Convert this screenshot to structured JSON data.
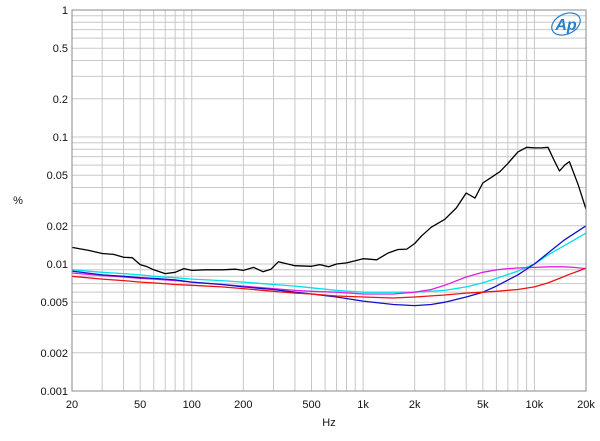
{
  "logo": {
    "text": "Ap",
    "color": "#2a7fc9"
  },
  "chart_data": {
    "type": "line",
    "xlabel": "Hz",
    "ylabel": "%",
    "xscale": "log",
    "yscale": "log",
    "xlim": [
      20,
      20000
    ],
    "ylim": [
      0.001,
      1
    ],
    "grid": true,
    "x_ticks": [
      {
        "v": 20,
        "label": "20"
      },
      {
        "v": 50,
        "label": "50"
      },
      {
        "v": 100,
        "label": "100"
      },
      {
        "v": 200,
        "label": "200"
      },
      {
        "v": 500,
        "label": "500"
      },
      {
        "v": 1000,
        "label": "1k"
      },
      {
        "v": 2000,
        "label": "2k"
      },
      {
        "v": 5000,
        "label": "5k"
      },
      {
        "v": 10000,
        "label": "10k"
      },
      {
        "v": 20000,
        "label": "20k"
      }
    ],
    "y_ticks": [
      {
        "v": 1,
        "label": "1"
      },
      {
        "v": 0.5,
        "label": "0.5"
      },
      {
        "v": 0.2,
        "label": "0.2"
      },
      {
        "v": 0.1,
        "label": "0.1"
      },
      {
        "v": 0.05,
        "label": "0.05"
      },
      {
        "v": 0.02,
        "label": "0.02"
      },
      {
        "v": 0.01,
        "label": "0.01"
      },
      {
        "v": 0.005,
        "label": "0.005"
      },
      {
        "v": 0.002,
        "label": "0.002"
      },
      {
        "v": 0.001,
        "label": "0.001"
      }
    ],
    "series": [
      {
        "color": "#000000",
        "x": [
          20,
          25,
          30,
          35,
          40,
          45,
          50,
          55,
          60,
          70,
          80,
          90,
          100,
          120,
          150,
          180,
          200,
          230,
          260,
          290,
          320,
          400,
          500,
          560,
          630,
          700,
          800,
          900,
          1000,
          1200,
          1400,
          1600,
          1800,
          2000,
          2200,
          2500,
          3000,
          3500,
          4000,
          4500,
          5000,
          5600,
          6300,
          7000,
          8000,
          9000,
          10000,
          11000,
          12000,
          13000,
          14000,
          15000,
          16000,
          18000,
          20000
        ],
        "y": [
          0.0135,
          0.0128,
          0.0121,
          0.0119,
          0.0113,
          0.0112,
          0.0099,
          0.0095,
          0.009,
          0.0084,
          0.0086,
          0.0092,
          0.0089,
          0.009,
          0.009,
          0.0091,
          0.0089,
          0.0094,
          0.0087,
          0.0091,
          0.0104,
          0.0097,
          0.0096,
          0.0099,
          0.0095,
          0.01,
          0.0102,
          0.0106,
          0.011,
          0.0108,
          0.0122,
          0.013,
          0.0131,
          0.0145,
          0.0167,
          0.0195,
          0.0225,
          0.0276,
          0.0362,
          0.033,
          0.0434,
          0.0481,
          0.0534,
          0.062,
          0.076,
          0.083,
          0.082,
          0.082,
          0.083,
          0.066,
          0.054,
          0.06,
          0.064,
          0.042,
          0.027
        ]
      },
      {
        "color": "#00e0e8",
        "x": [
          20,
          30,
          40,
          50,
          60,
          80,
          100,
          150,
          200,
          300,
          400,
          500,
          700,
          1000,
          1500,
          2000,
          3000,
          4000,
          5000,
          6000,
          8000,
          10000,
          12000,
          15000,
          20000
        ],
        "y": [
          0.009,
          0.0086,
          0.0084,
          0.0082,
          0.008,
          0.0078,
          0.0076,
          0.0074,
          0.0072,
          0.0069,
          0.0067,
          0.0065,
          0.0062,
          0.006,
          0.006,
          0.006,
          0.0062,
          0.0066,
          0.0071,
          0.0077,
          0.0088,
          0.01,
          0.0118,
          0.014,
          0.0175
        ]
      },
      {
        "color": "#e020e0",
        "x": [
          20,
          30,
          40,
          50,
          60,
          80,
          100,
          150,
          200,
          300,
          400,
          500,
          700,
          1000,
          1500,
          2000,
          2500,
          3000,
          4000,
          5000,
          6000,
          7000,
          8000,
          10000,
          12000,
          15000,
          17000,
          20000
        ],
        "y": [
          0.0085,
          0.0081,
          0.0079,
          0.0077,
          0.0076,
          0.0074,
          0.0072,
          0.0069,
          0.0067,
          0.0064,
          0.0062,
          0.0061,
          0.006,
          0.0058,
          0.0058,
          0.006,
          0.0063,
          0.0068,
          0.0079,
          0.0086,
          0.009,
          0.0092,
          0.0093,
          0.0094,
          0.0095,
          0.0095,
          0.0094,
          0.0092
        ]
      },
      {
        "color": "#1010cc",
        "x": [
          20,
          30,
          40,
          50,
          60,
          80,
          100,
          150,
          200,
          300,
          400,
          500,
          700,
          1000,
          1500,
          2000,
          2500,
          3000,
          4000,
          5000,
          6000,
          8000,
          10000,
          12000,
          15000,
          20000
        ],
        "y": [
          0.0088,
          0.0082,
          0.008,
          0.0078,
          0.0077,
          0.0075,
          0.0072,
          0.0069,
          0.0066,
          0.0063,
          0.006,
          0.0058,
          0.0055,
          0.0051,
          0.0048,
          0.0047,
          0.0048,
          0.005,
          0.0055,
          0.006,
          0.0067,
          0.0082,
          0.01,
          0.0122,
          0.0155,
          0.02
        ]
      },
      {
        "color": "#ee1111",
        "x": [
          20,
          30,
          40,
          50,
          60,
          80,
          100,
          150,
          200,
          300,
          400,
          500,
          700,
          1000,
          1500,
          2000,
          3000,
          4000,
          5000,
          6000,
          8000,
          10000,
          12000,
          14000,
          16000,
          18000,
          20000
        ],
        "y": [
          0.008,
          0.0076,
          0.0074,
          0.0072,
          0.0071,
          0.0069,
          0.0068,
          0.0066,
          0.0064,
          0.0061,
          0.0059,
          0.0058,
          0.0056,
          0.0055,
          0.0054,
          0.0055,
          0.0057,
          0.0059,
          0.006,
          0.0061,
          0.0063,
          0.0066,
          0.0071,
          0.0077,
          0.0083,
          0.0088,
          0.0093
        ]
      }
    ]
  }
}
